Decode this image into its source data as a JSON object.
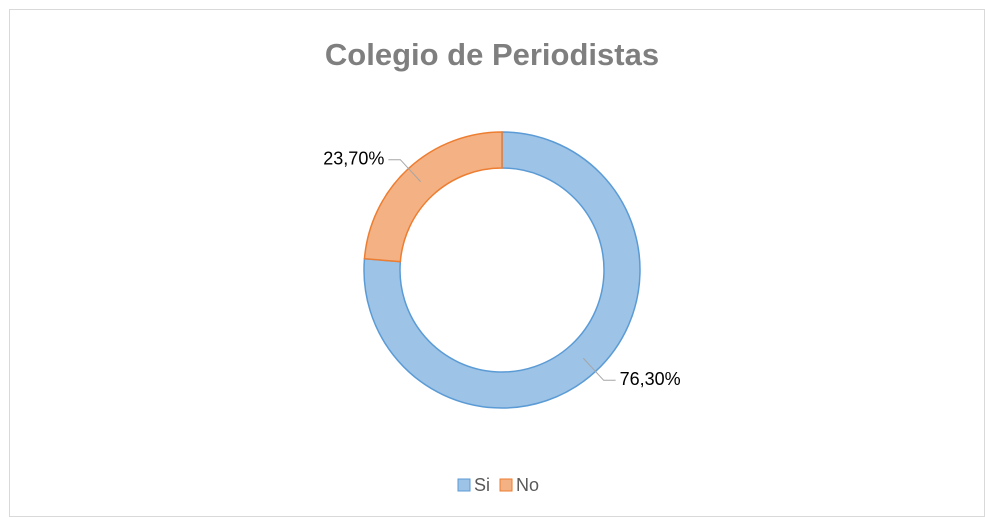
{
  "chart_data": {
    "type": "doughnut",
    "title": "Colegio de Periodistas",
    "categories": [
      "Si",
      "No"
    ],
    "values": [
      76.3,
      23.7
    ],
    "value_labels": [
      "76,30%",
      "23,70%"
    ],
    "colors": [
      "#9dc3e6",
      "#f4b183"
    ],
    "stroke_colors": [
      "#5b9bd5",
      "#ed7d31"
    ],
    "legend": "bottom"
  }
}
